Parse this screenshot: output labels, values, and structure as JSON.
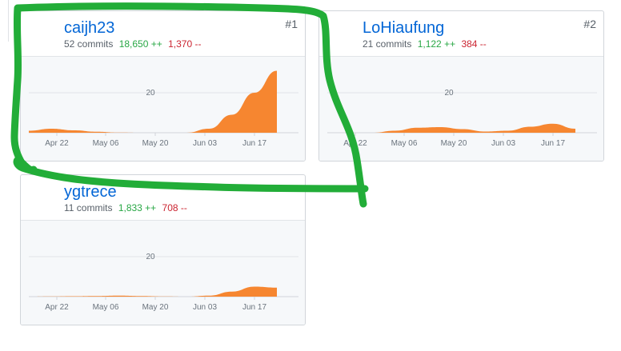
{
  "contributors": [
    {
      "username": "caijh23",
      "rank": "#1",
      "commits": "52 commits",
      "additions": "18,650 ++",
      "deletions": "1,370 --",
      "gridline": "20",
      "xticks": [
        "Apr 22",
        "May 06",
        "May 20",
        "Jun 03",
        "Jun 17"
      ],
      "accent": "#f68630",
      "series": [
        {
          "week": "Apr 08",
          "commits": 1
        },
        {
          "week": "Apr 15",
          "commits": 2
        },
        {
          "week": "Apr 22",
          "commits": 1.2
        },
        {
          "week": "Apr 29",
          "commits": 0.5
        },
        {
          "week": "May 06",
          "commits": 0.1
        },
        {
          "week": "May 13",
          "commits": 0
        },
        {
          "week": "May 20",
          "commits": 0
        },
        {
          "week": "May 27",
          "commits": 0
        },
        {
          "week": "Jun 03",
          "commits": 2
        },
        {
          "week": "Jun 10",
          "commits": 9
        },
        {
          "week": "Jun 17",
          "commits": 20
        },
        {
          "week": "Jun 24",
          "commits": 31
        }
      ]
    },
    {
      "username": "LoHiaufung",
      "rank": "#2",
      "commits": "21 commits",
      "additions": "1,122 ++",
      "deletions": "384 --",
      "gridline": "20",
      "xticks": [
        "Apr 22",
        "May 06",
        "May 20",
        "Jun 03",
        "Jun 17"
      ],
      "accent": "#f68630",
      "series": [
        {
          "week": "Apr 08",
          "commits": 0
        },
        {
          "week": "Apr 15",
          "commits": 0
        },
        {
          "week": "Apr 22",
          "commits": 0
        },
        {
          "week": "Apr 29",
          "commits": 1
        },
        {
          "week": "May 06",
          "commits": 2.5
        },
        {
          "week": "May 13",
          "commits": 2.8
        },
        {
          "week": "May 20",
          "commits": 1.8
        },
        {
          "week": "May 27",
          "commits": 0.6
        },
        {
          "week": "Jun 03",
          "commits": 1
        },
        {
          "week": "Jun 10",
          "commits": 3
        },
        {
          "week": "Jun 17",
          "commits": 4.5
        },
        {
          "week": "Jun 24",
          "commits": 2
        }
      ]
    },
    {
      "username": "ygtrece",
      "rank": "",
      "commits": "11 commits",
      "additions": "1,833 ++",
      "deletions": "708 --",
      "gridline": "20",
      "xticks": [
        "Apr 22",
        "May 06",
        "May 20",
        "Jun 03",
        "Jun 17"
      ],
      "accent": "#f68630",
      "series": [
        {
          "week": "Apr 08",
          "commits": 0
        },
        {
          "week": "Apr 15",
          "commits": 0.1
        },
        {
          "week": "Apr 22",
          "commits": 0.2
        },
        {
          "week": "Apr 29",
          "commits": 0.3
        },
        {
          "week": "May 06",
          "commits": 0.5
        },
        {
          "week": "May 13",
          "commits": 0.3
        },
        {
          "week": "May 20",
          "commits": 0.1
        },
        {
          "week": "May 27",
          "commits": 0
        },
        {
          "week": "Jun 03",
          "commits": 0.5
        },
        {
          "week": "Jun 10",
          "commits": 2.5
        },
        {
          "week": "Jun 17",
          "commits": 5
        },
        {
          "week": "Jun 24",
          "commits": 4.5
        }
      ]
    }
  ],
  "annotation": {
    "color": "#22ad38",
    "shape": "hand-drawn-loop"
  }
}
